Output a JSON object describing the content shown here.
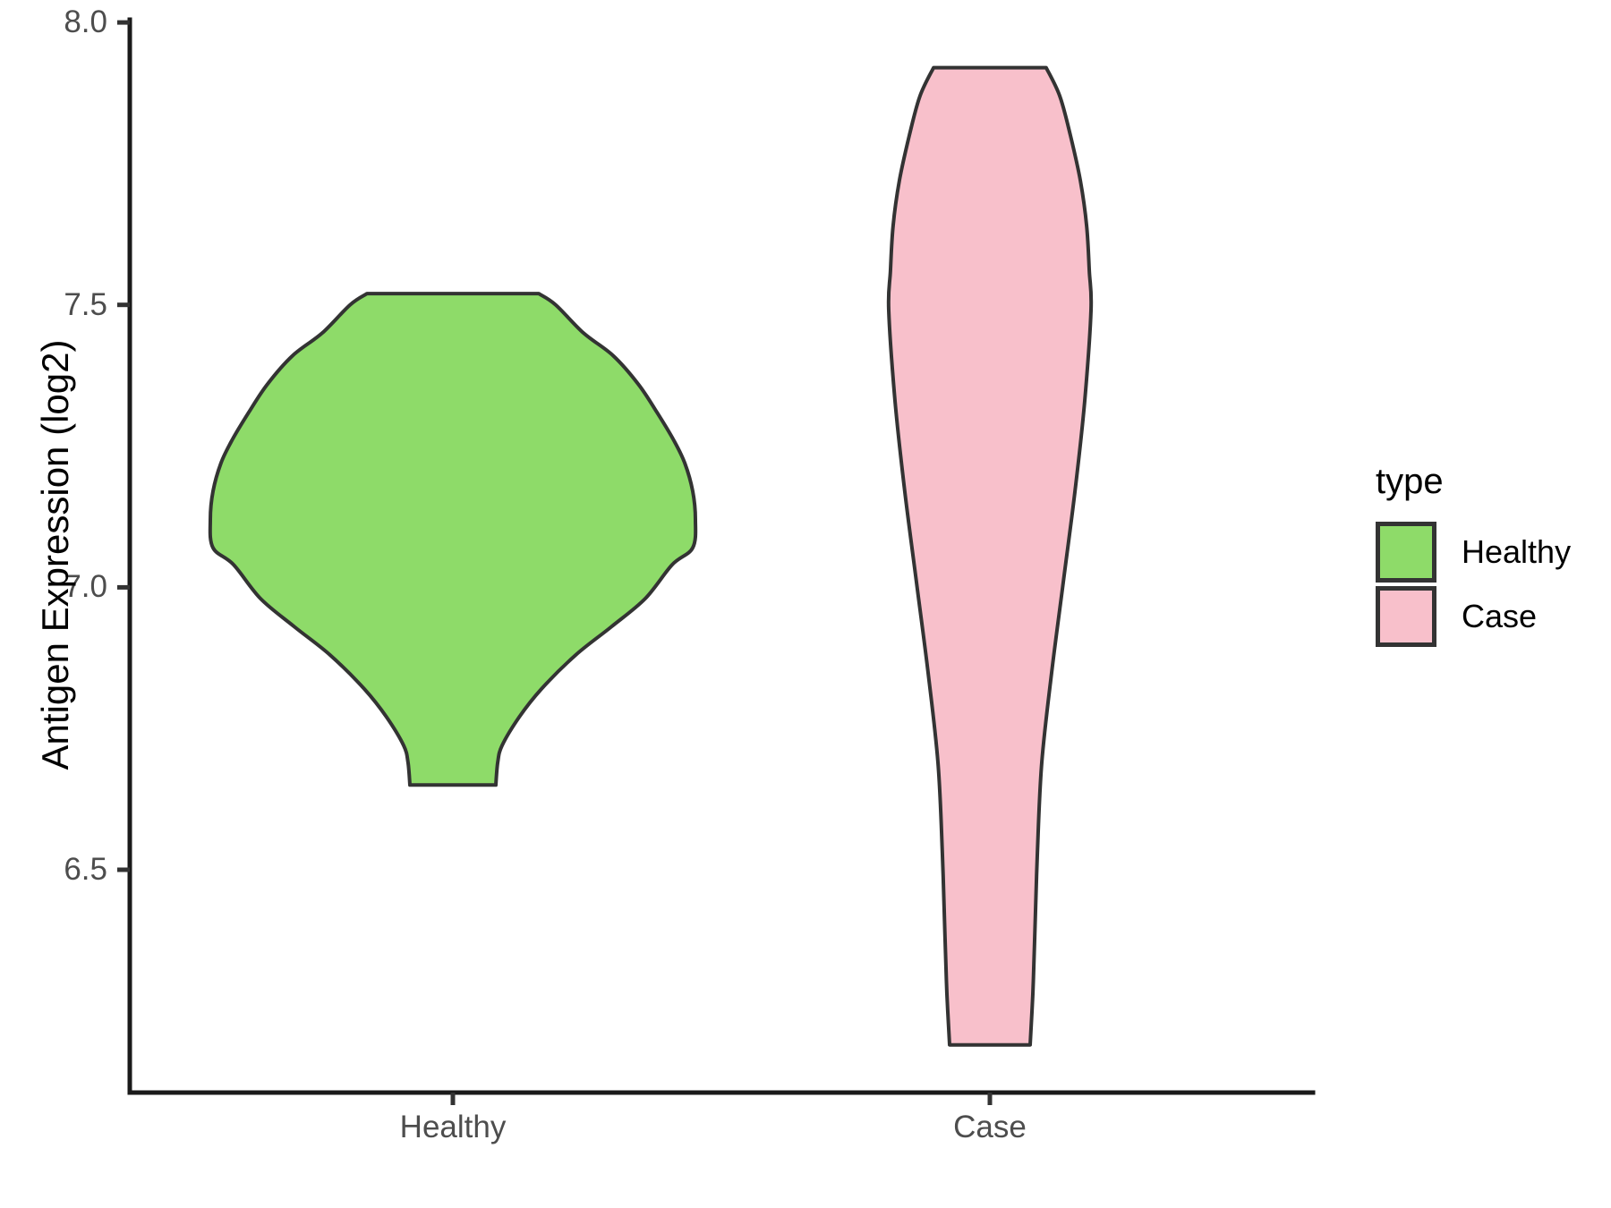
{
  "figure": {
    "background": "#FFFFFF"
  },
  "chart_data": {
    "type": "violin",
    "title": "",
    "xlabel": "",
    "ylabel": "Antigen Expression (log2)",
    "categories": [
      "Healthy",
      "Case"
    ],
    "y_ticks": [
      8.0,
      7.5,
      7.0,
      6.5
    ],
    "y_tick_labels": [
      "8.0",
      "7.5",
      "7.0",
      "6.5"
    ],
    "ylim": [
      6.1,
      8.0
    ],
    "grid": false,
    "legend": {
      "title": "type",
      "position": "right",
      "entries": [
        {
          "label": "Healthy",
          "color": "#8EDB69"
        },
        {
          "label": "Case",
          "color": "#F8C0CB"
        }
      ]
    },
    "style": {
      "outline_color": "#333333",
      "axis_color": "#1a1a1a",
      "tick_color": "#333333",
      "tick_label_color": "#4D4D4D",
      "axis_title_color": "#000000"
    },
    "series": [
      {
        "name": "Healthy",
        "fill": "#8EDB69",
        "min": 6.65,
        "max": 7.52,
        "peak_density_at": 7.12,
        "profile": [
          [
            7.52,
            0.354
          ],
          [
            7.5,
            0.424
          ],
          [
            7.45,
            0.539
          ],
          [
            7.41,
            0.661
          ],
          [
            7.36,
            0.764
          ],
          [
            7.31,
            0.841
          ],
          [
            7.26,
            0.911
          ],
          [
            7.22,
            0.956
          ],
          [
            7.17,
            0.989
          ],
          [
            7.12,
            1.0
          ],
          [
            7.07,
            0.989
          ],
          [
            7.04,
            0.904
          ],
          [
            6.98,
            0.793
          ],
          [
            6.93,
            0.653
          ],
          [
            6.88,
            0.506
          ],
          [
            6.82,
            0.365
          ],
          [
            6.77,
            0.273
          ],
          [
            6.72,
            0.203
          ],
          [
            6.69,
            0.185
          ],
          [
            6.65,
            0.177
          ]
        ]
      },
      {
        "name": "Case",
        "fill": "#F8C0CB",
        "min": 6.19,
        "max": 7.92,
        "peak_density_at": 7.49,
        "profile": [
          [
            7.92,
            0.232
          ],
          [
            7.87,
            0.288
          ],
          [
            7.8,
            0.332
          ],
          [
            7.72,
            0.373
          ],
          [
            7.64,
            0.399
          ],
          [
            7.56,
            0.41
          ],
          [
            7.49,
            0.417
          ],
          [
            7.33,
            0.391
          ],
          [
            7.17,
            0.351
          ],
          [
            7.01,
            0.303
          ],
          [
            6.85,
            0.255
          ],
          [
            6.69,
            0.214
          ],
          [
            6.53,
            0.196
          ],
          [
            6.38,
            0.185
          ],
          [
            6.28,
            0.177
          ],
          [
            6.19,
            0.166
          ]
        ]
      }
    ]
  }
}
